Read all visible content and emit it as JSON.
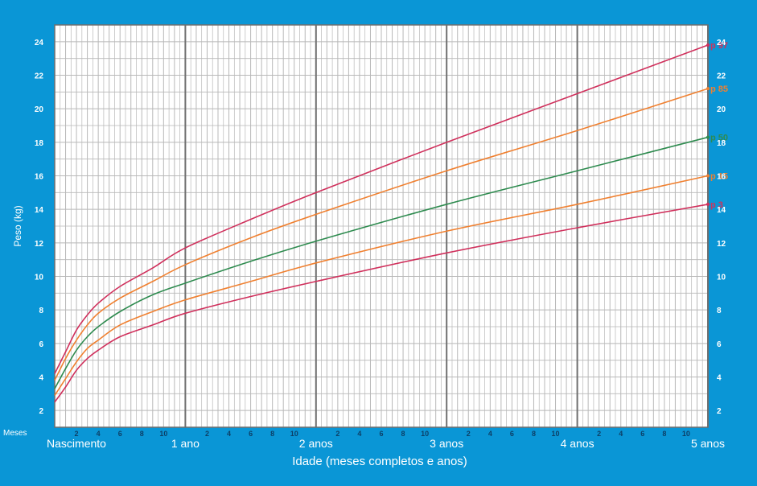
{
  "chart_data": {
    "type": "line",
    "xlabel": "Idade (meses completos e anos)",
    "ylabel": "Peso (kg)",
    "x_unit_label": "Meses",
    "x_range_months": [
      0,
      60
    ],
    "ylim": [
      1,
      25
    ],
    "y_ticks": [
      2,
      4,
      6,
      8,
      10,
      12,
      14,
      16,
      18,
      20,
      22,
      24
    ],
    "x_month_tick_labels": [
      "2",
      "4",
      "6",
      "8",
      "10"
    ],
    "x_year_labels": [
      {
        "month": 0,
        "label": "Nascimento"
      },
      {
        "month": 12,
        "label": "1 ano"
      },
      {
        "month": 24,
        "label": "2 anos"
      },
      {
        "month": 36,
        "label": "3 anos"
      },
      {
        "month": 48,
        "label": "4 anos"
      },
      {
        "month": 60,
        "label": "5 anos"
      }
    ],
    "grid": true,
    "x": [
      0,
      1,
      2,
      3,
      4,
      6,
      9,
      12,
      18,
      24,
      36,
      48,
      60
    ],
    "series": [
      {
        "name": "p 97",
        "color": "#d0305c",
        "values": [
          4.2,
          5.5,
          6.8,
          7.7,
          8.4,
          9.4,
          10.5,
          11.7,
          13.4,
          15.0,
          18.0,
          20.9,
          23.8
        ]
      },
      {
        "name": "p 85",
        "color": "#f08030",
        "values": [
          3.8,
          5.1,
          6.2,
          7.1,
          7.8,
          8.7,
          9.7,
          10.7,
          12.3,
          13.7,
          16.3,
          18.7,
          21.2
        ]
      },
      {
        "name": "p 50",
        "color": "#2e8b4f",
        "values": [
          3.3,
          4.5,
          5.6,
          6.4,
          7.0,
          7.9,
          8.9,
          9.6,
          10.9,
          12.1,
          14.3,
          16.3,
          18.3
        ]
      },
      {
        "name": "p 15",
        "color": "#f08030",
        "values": [
          2.9,
          3.9,
          4.9,
          5.7,
          6.2,
          7.1,
          7.9,
          8.6,
          9.7,
          10.8,
          12.7,
          14.3,
          16.0
        ]
      },
      {
        "name": "p 3",
        "color": "#d0305c",
        "values": [
          2.5,
          3.4,
          4.4,
          5.1,
          5.6,
          6.4,
          7.1,
          7.8,
          8.8,
          9.7,
          11.4,
          12.9,
          14.3
        ]
      }
    ]
  }
}
